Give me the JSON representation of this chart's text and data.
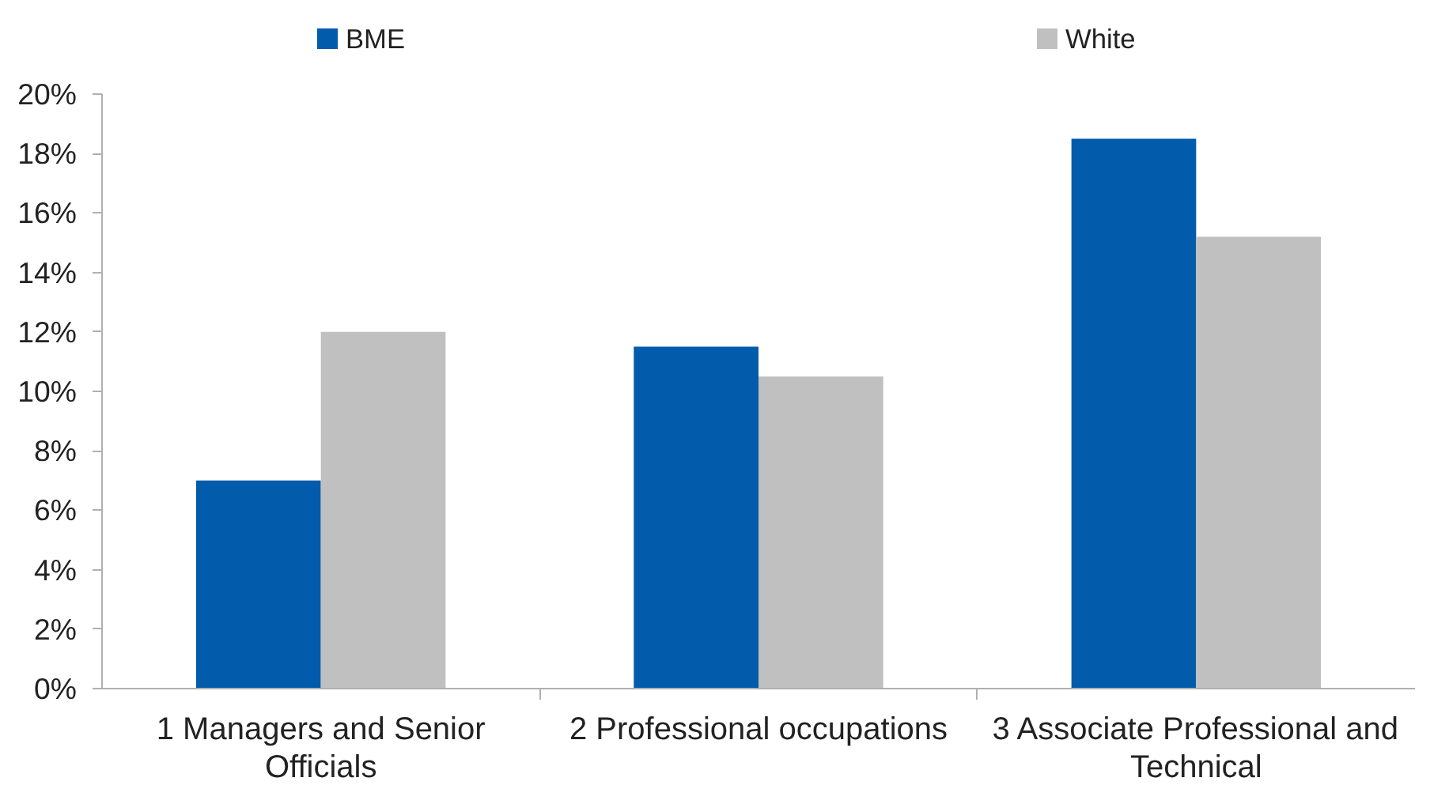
{
  "chart_data": {
    "type": "bar",
    "categories": [
      "1 Managers and Senior Officials",
      "2 Professional occupations",
      "3 Associate Professional and Technical"
    ],
    "series": [
      {
        "name": "BME",
        "color": "#035bab",
        "values": [
          7.0,
          11.5,
          18.5
        ]
      },
      {
        "name": "White",
        "color": "#c0c0c0",
        "values": [
          12.0,
          10.5,
          15.2
        ]
      }
    ],
    "ylim": [
      0,
      20
    ],
    "yticks": [
      {
        "value": 0,
        "label": "0%"
      },
      {
        "value": 2,
        "label": "2%"
      },
      {
        "value": 4,
        "label": "4%"
      },
      {
        "value": 6,
        "label": "6%"
      },
      {
        "value": 8,
        "label": "8%"
      },
      {
        "value": 10,
        "label": "10%"
      },
      {
        "value": 12,
        "label": "12%"
      },
      {
        "value": 14,
        "label": "14%"
      },
      {
        "value": 16,
        "label": "16%"
      },
      {
        "value": 18,
        "label": "18%"
      },
      {
        "value": 20,
        "label": "20%"
      }
    ],
    "grid": false,
    "legend": "top"
  }
}
